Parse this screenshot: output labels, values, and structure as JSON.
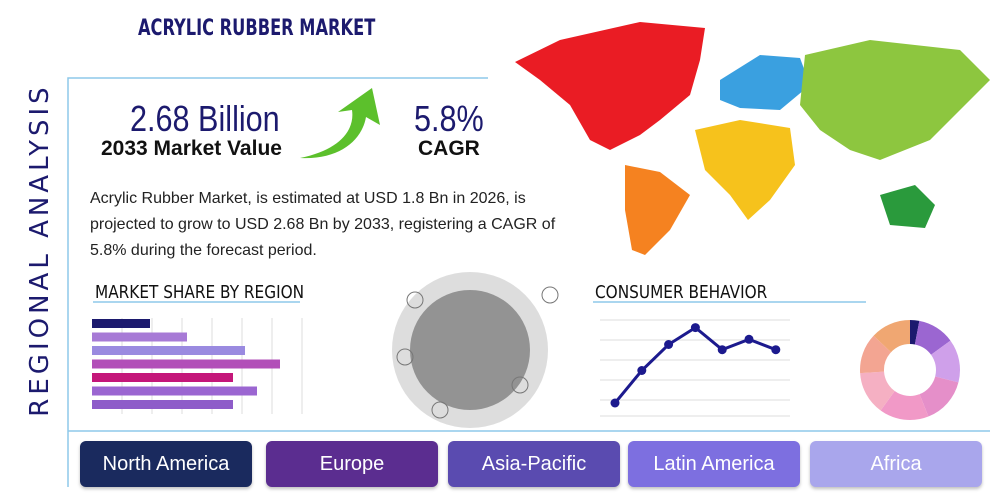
{
  "header": {
    "title": "ACRYLIC RUBBER MARKET",
    "side_label": "REGIONAL ANALYSIS"
  },
  "stats": {
    "market_value": "2.68 Billion",
    "market_value_label": "2033 Market Value",
    "cagr": "5.8%",
    "cagr_label": "CAGR"
  },
  "description": "Acrylic Rubber Market, is estimated at USD 1.8 Bn in 2026, is projected to grow to USD 2.68 Bn by 2033, registering a CAGR of 5.8% during the forecast period.",
  "market_share": {
    "title": "MARKET SHARE BY REGION",
    "values": [
      58,
      95,
      153,
      188,
      141,
      165,
      141
    ],
    "colors": [
      "#1c1a6e",
      "#a77ad6",
      "#9a8ae0",
      "#b24fb8",
      "#c4177a",
      "#9b66d1",
      "#8e5cc9"
    ]
  },
  "consumer_behavior": {
    "title": "CONSUMER BEHAVIOR",
    "values": [
      10,
      35,
      55,
      68,
      51,
      59,
      51
    ],
    "color": "#1c1a8e"
  },
  "donut": {
    "values": [
      3,
      12,
      14,
      15,
      16,
      14,
      13,
      13
    ],
    "colors": [
      "#1c1a6e",
      "#9b66d1",
      "#cfa0ea",
      "#e58fc9",
      "#f199c7",
      "#f5b0c3",
      "#f3a592",
      "#f0a772"
    ]
  },
  "regions": [
    "North America",
    "Europe",
    "Asia-Pacific",
    "Latin America",
    "Africa"
  ]
}
